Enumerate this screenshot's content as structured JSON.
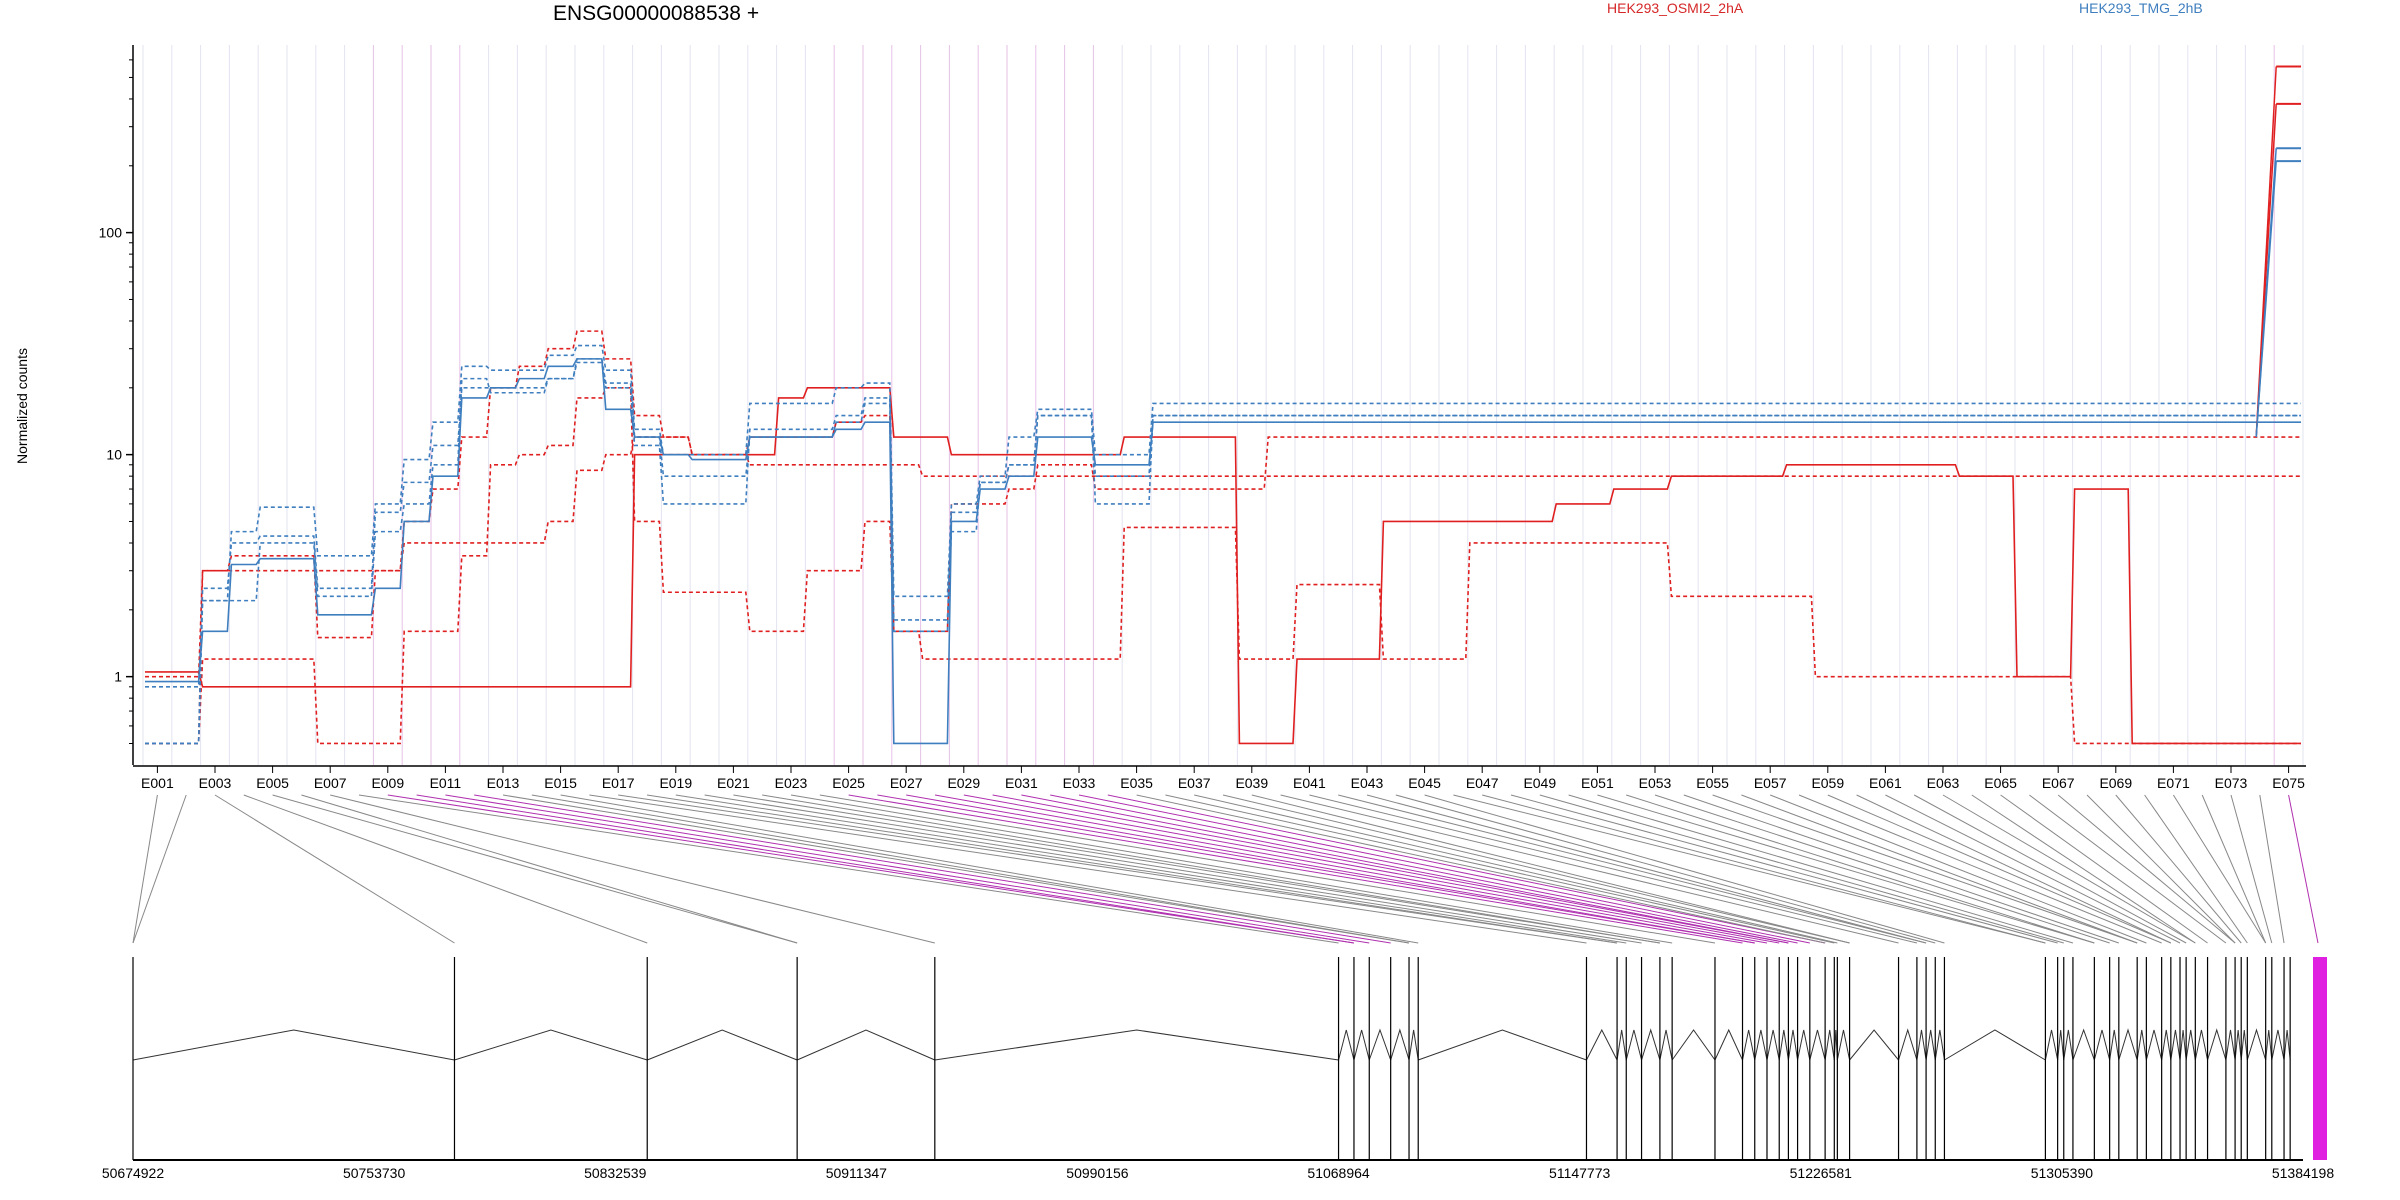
{
  "title": "ENSG00000088538 +",
  "ylabel": "Normalized counts",
  "legend": [
    {
      "name": "HEK293_OSMI2_2hA",
      "color": "#d62728"
    },
    {
      "name": "HEK293_TMG_2hB",
      "color": "#3f7fbf"
    }
  ],
  "chart_data": {
    "type": "line",
    "yscale": "log",
    "ylim": [
      0.4,
      700
    ],
    "yticks": [
      1,
      10,
      100
    ],
    "ytick_labels": [
      "1",
      "10",
      "100"
    ],
    "exon_labels": [
      "E001",
      "E003",
      "E005",
      "E007",
      "E009",
      "E011",
      "E013",
      "E015",
      "E017",
      "E019",
      "E021",
      "E023",
      "E025",
      "E027",
      "E029",
      "E031",
      "E033",
      "E035",
      "E037",
      "E039",
      "E041",
      "E043",
      "E045",
      "E047",
      "E049",
      "E051",
      "E053",
      "E055",
      "E057",
      "E059",
      "E061",
      "E063",
      "E065",
      "E067",
      "E069",
      "E071",
      "E073",
      "E075"
    ],
    "exon_count": 75,
    "highlight_exons": [
      9,
      10,
      11,
      12,
      25,
      26,
      27,
      28,
      29,
      30,
      31,
      32,
      33,
      34,
      75
    ],
    "series": [
      {
        "group": "red",
        "dash": "solid",
        "values": [
          1.05,
          1.05,
          0.9,
          0.9,
          0.9,
          0.9,
          0.9,
          0.9,
          0.9,
          0.9,
          0.9,
          0.9,
          0.9,
          0.9,
          0.9,
          0.9,
          0.9,
          10,
          10,
          10,
          10,
          10,
          18,
          20,
          20,
          20,
          12,
          12,
          10,
          10,
          10,
          10,
          10,
          10,
          12,
          12,
          12,
          12,
          0.5,
          0.5,
          1.2,
          1.2,
          1.2,
          5,
          5,
          5,
          5,
          5,
          5,
          6,
          6,
          7,
          7,
          8,
          8,
          8,
          8,
          9,
          9,
          9,
          9,
          9,
          9,
          8,
          8,
          1,
          1,
          7,
          7,
          0.5,
          0.5,
          0.5,
          0.5,
          0.5,
          0.5
        ]
      },
      {
        "group": "red",
        "dash": "dash",
        "values": [
          0.5,
          0.5,
          1.2,
          1.2,
          1.2,
          1.2,
          0.5,
          0.5,
          0.5,
          1.6,
          1.6,
          3.5,
          9,
          10,
          11,
          18,
          20,
          5,
          2.4,
          2.4,
          2.4,
          1.6,
          1.6,
          3,
          3,
          5,
          1.6,
          1.2,
          1.2,
          1.2,
          1.2,
          1.2,
          1.2,
          1.2,
          4.7,
          4.7,
          4.7,
          4.7,
          1.2,
          1.2,
          2.6,
          2.6,
          2.6,
          1.2,
          1.2,
          1.2,
          4,
          4,
          4,
          4,
          4,
          4,
          4,
          2.3,
          2.3,
          2.3,
          2.3,
          2.3,
          1,
          1,
          1,
          1,
          1,
          1,
          1,
          1,
          1,
          0.5,
          0.5,
          0.5,
          0.5,
          0.5,
          0.5,
          0.5,
          0.5
        ]
      },
      {
        "group": "red",
        "dash": "dash",
        "values": [
          0.5,
          0.5,
          3,
          3,
          3,
          3,
          3,
          3,
          3,
          4,
          4,
          4,
          4,
          4,
          5,
          8.5,
          10,
          12,
          12,
          10,
          10,
          9,
          9,
          9,
          9,
          9,
          9,
          8,
          8,
          8,
          8,
          8,
          8,
          8,
          8,
          8,
          8,
          8,
          8,
          8,
          8,
          8,
          8,
          8,
          8,
          8,
          8,
          8,
          8,
          8,
          8,
          8,
          8,
          8,
          8,
          8,
          8,
          8,
          8,
          8,
          8,
          8,
          8,
          8,
          8,
          8,
          8,
          8,
          8,
          8,
          8,
          8,
          8,
          8,
          8
        ]
      },
      {
        "group": "red",
        "dash": "dash",
        "values": [
          1,
          1,
          3,
          3.5,
          3.5,
          3.5,
          1.5,
          1.5,
          3,
          5,
          7,
          12,
          20,
          25,
          30,
          36,
          27,
          15,
          12,
          10,
          10,
          12,
          12,
          12,
          14,
          15,
          1.6,
          1.6,
          6,
          6,
          7,
          9,
          9,
          7,
          7,
          7,
          7,
          7,
          7,
          12,
          12,
          12,
          12,
          12,
          12,
          12,
          12,
          12,
          12,
          12,
          12,
          12,
          12,
          12,
          12,
          12,
          12,
          12,
          12,
          12,
          12,
          12,
          12,
          12,
          12,
          12,
          12,
          12,
          12,
          12,
          12,
          12,
          12,
          12,
          12
        ]
      },
      {
        "group": "blue",
        "dash": "solid",
        "values": [
          0.95,
          0.95,
          1.6,
          3.2,
          3.4,
          3.4,
          1.9,
          1.9,
          2.5,
          5,
          8,
          18,
          20,
          22,
          25,
          27,
          16,
          12,
          10,
          9.5,
          9.5,
          12,
          12,
          12,
          13,
          14,
          0.5,
          0.5,
          5,
          7,
          8,
          12,
          12,
          9,
          9,
          14,
          14,
          14,
          14,
          14,
          14,
          14,
          14,
          14,
          14,
          14,
          14,
          14,
          14,
          14,
          14,
          14,
          14,
          14,
          14,
          14,
          14,
          14,
          14,
          14,
          14,
          14,
          14,
          14,
          14,
          14,
          14,
          14,
          14,
          14,
          14,
          14,
          14,
          14,
          14
        ]
      },
      {
        "group": "blue",
        "dash": "dash",
        "values": [
          0.5,
          0.5,
          2.2,
          2.2,
          4,
          4,
          2.3,
          2.3,
          4.5,
          6,
          9,
          22,
          19,
          19,
          22,
          26,
          20,
          11,
          6,
          6,
          6,
          13,
          13,
          13,
          15,
          18,
          1.6,
          1.6,
          4.5,
          7.5,
          9,
          15,
          15,
          6,
          6,
          15,
          15,
          15,
          15,
          15,
          15,
          15,
          15,
          15,
          15,
          15,
          15,
          15,
          15,
          15,
          15,
          15,
          15,
          15,
          15,
          15,
          15,
          15,
          15,
          15,
          15,
          15,
          15,
          15,
          15,
          15,
          15,
          15,
          15,
          15,
          15,
          15,
          15,
          15,
          15
        ]
      },
      {
        "group": "blue",
        "dash": "dash",
        "values": [
          0.5,
          0.5,
          2.5,
          4,
          4.3,
          4.3,
          2.5,
          2.5,
          5.5,
          7.5,
          11,
          20,
          20,
          20,
          22,
          27,
          21,
          12,
          8,
          8,
          8,
          12,
          12,
          12,
          14,
          17,
          1.8,
          1.8,
          5.5,
          7.5,
          9,
          15,
          15,
          8,
          8,
          15,
          15,
          15,
          15,
          15,
          15,
          15,
          15,
          15,
          15,
          15,
          15,
          15,
          15,
          15,
          15,
          15,
          15,
          15,
          15,
          15,
          15,
          15,
          15,
          15,
          15,
          15,
          15,
          15,
          15,
          15,
          15,
          15,
          15,
          15,
          15,
          15,
          15,
          15,
          15
        ]
      },
      {
        "group": "blue",
        "dash": "dash",
        "values": [
          0.9,
          0.9,
          2.2,
          4.5,
          5.8,
          5.8,
          3.5,
          3.5,
          6,
          9.5,
          14,
          25,
          24,
          24,
          28,
          31,
          24,
          13,
          10,
          10,
          10,
          17,
          17,
          17,
          20,
          21,
          2.3,
          2.3,
          6,
          8,
          12,
          16,
          16,
          10,
          10,
          17,
          17,
          17,
          17,
          17,
          17,
          17,
          17,
          17,
          17,
          17,
          17,
          17,
          17,
          17,
          17,
          17,
          17,
          17,
          17,
          17,
          17,
          17,
          17,
          17,
          17,
          17,
          17,
          17,
          17,
          17,
          17,
          17,
          17,
          17,
          17,
          17,
          17,
          17,
          17
        ]
      }
    ],
    "end_values": {
      "red": [
        560,
        380
      ],
      "blue": [
        240,
        210
      ]
    },
    "genomic_coord_labels": [
      "50674922",
      "50753730",
      "50832539",
      "50911347",
      "50990156",
      "51068964",
      "51147773",
      "51226581",
      "51305390",
      "51384198"
    ],
    "genomic_range": [
      50674922,
      51384198
    ],
    "exon_starts": [
      50674922,
      50780000,
      50843000,
      50892000,
      50937000,
      51068964,
      51074000,
      51079000,
      51086000,
      51092000,
      51095000,
      51150000,
      51160000,
      51163000,
      51168000,
      51174000,
      51178000,
      51192000,
      51201000,
      51205000,
      51209000,
      51213000,
      51216000,
      51219000,
      51223000,
      51228000,
      51231000,
      51232000,
      51236000,
      51252000,
      51258000,
      51261000,
      51264000,
      51267000,
      51300000,
      51304000,
      51306000,
      51309000,
      51316000,
      51321000,
      51324000,
      51330000,
      51333000,
      51338000,
      51341000,
      51344000,
      51346000,
      51349000,
      51353000,
      51359000,
      51362000,
      51364000,
      51366000,
      51372000,
      51374000,
      51378000,
      51380000
    ]
  }
}
